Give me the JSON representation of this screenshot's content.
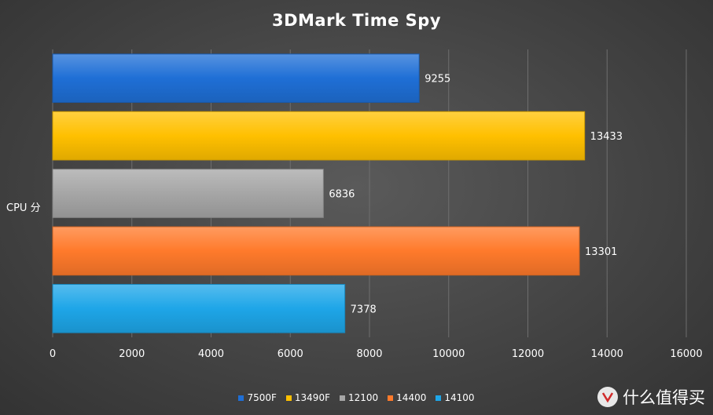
{
  "chart_data": {
    "type": "bar",
    "orientation": "horizontal",
    "title": "3DMark Time Spy",
    "categories": [
      "CPU 分"
    ],
    "series": [
      {
        "name": "7500F",
        "values": [
          9255
        ],
        "color": "#1f6fd6"
      },
      {
        "name": "13490F",
        "values": [
          13433
        ],
        "color": "#ffc000"
      },
      {
        "name": "12100",
        "values": [
          6836
        ],
        "color": "#a6a6a6"
      },
      {
        "name": "14400",
        "values": [
          13301
        ],
        "color": "#ff7a2b"
      },
      {
        "name": "14100",
        "values": [
          7378
        ],
        "color": "#1ea6e8"
      }
    ],
    "xlim": [
      0,
      16000
    ],
    "xticks": [
      0,
      2000,
      4000,
      6000,
      8000,
      10000,
      12000,
      14000,
      16000
    ],
    "grid": true,
    "legend_position": "bottom"
  },
  "watermark": {
    "text": "什么值得买",
    "icon": "value-logo-icon"
  }
}
